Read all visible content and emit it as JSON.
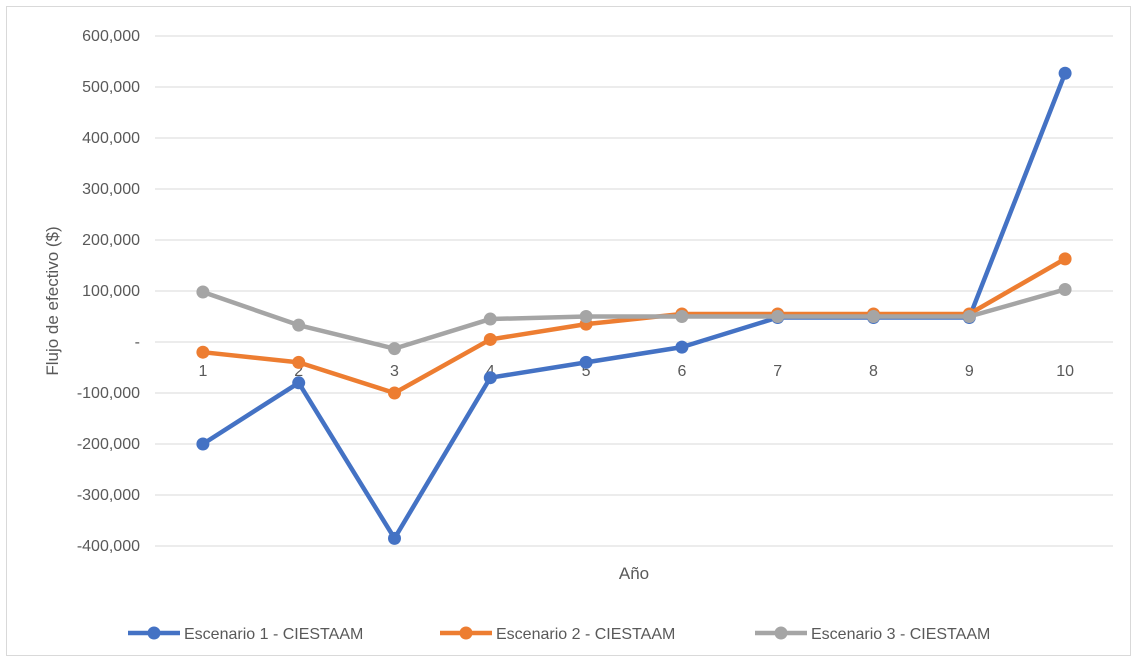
{
  "chart_data": {
    "type": "line",
    "title": "",
    "xlabel": "Año",
    "ylabel": "Flujo de efectivo ($)",
    "categories": [
      "1",
      "2",
      "3",
      "4",
      "5",
      "6",
      "7",
      "8",
      "9",
      "10"
    ],
    "ylim": [
      -400000,
      600000
    ],
    "y_ticks": [
      600000,
      500000,
      400000,
      300000,
      200000,
      100000,
      0,
      -100000,
      -200000,
      -300000,
      -400000
    ],
    "y_tick_labels": [
      "600,000",
      "500,000",
      "400,000",
      "300,000",
      "200,000",
      "100,000",
      "-",
      "-100,000",
      "-200,000",
      "-300,000",
      "-400,000"
    ],
    "grid": true,
    "legend_position": "bottom",
    "series": [
      {
        "name": "Escenario 1 - CIESTAAM",
        "color": "#4472C4",
        "values": [
          -200000,
          -80000,
          -385000,
          -70000,
          -40000,
          -10000,
          48000,
          48000,
          48000,
          527000
        ]
      },
      {
        "name": "Escenario 2 - CIESTAAM",
        "color": "#ED7D31",
        "values": [
          -20000,
          -40000,
          -100000,
          5000,
          35000,
          55000,
          55000,
          55000,
          55000,
          163000
        ]
      },
      {
        "name": "Escenario 3 - CIESTAAM",
        "color": "#A5A5A5",
        "values": [
          98000,
          33000,
          -13000,
          45000,
          50000,
          50000,
          50000,
          50000,
          50000,
          103000
        ]
      }
    ]
  }
}
